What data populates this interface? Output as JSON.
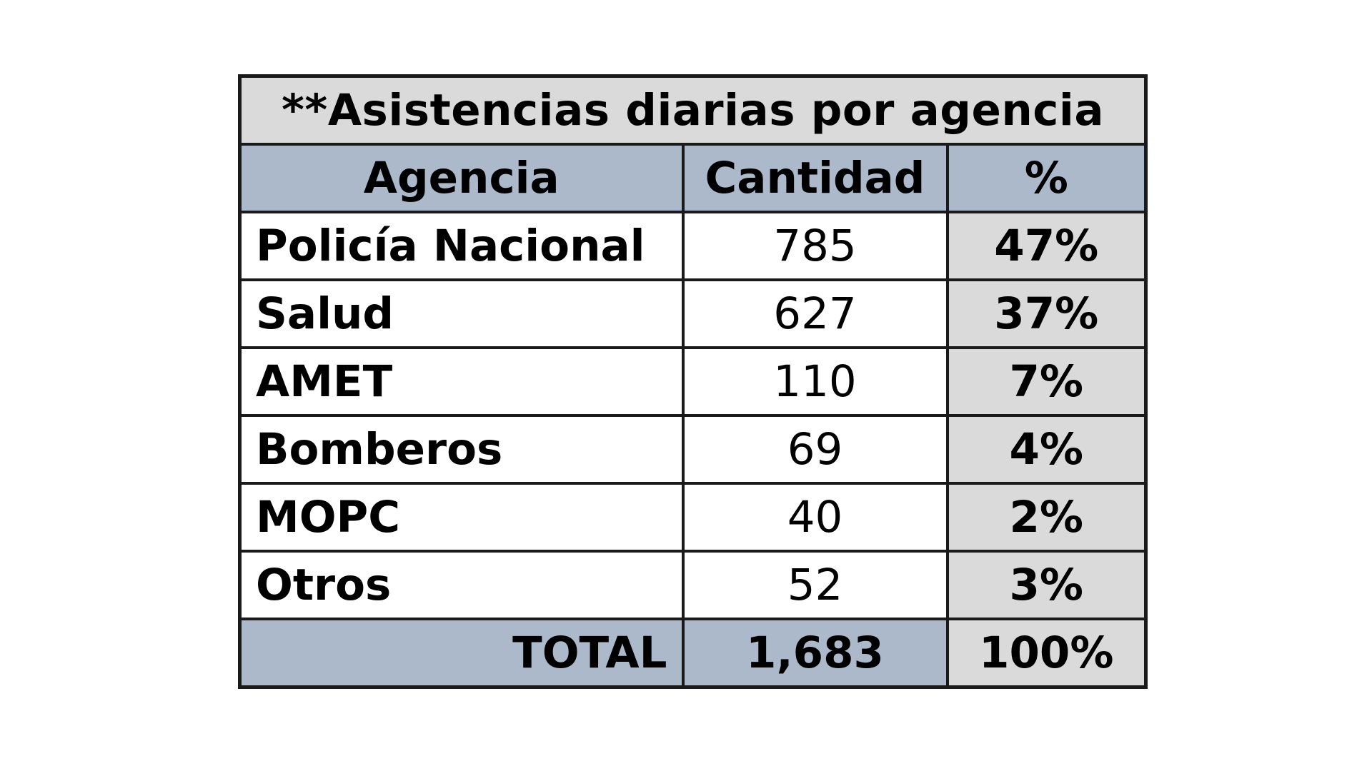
{
  "chart_data": {
    "type": "table",
    "title": "**Asistencias diarias por agencia",
    "columns": [
      "Agencia",
      "Cantidad",
      "%"
    ],
    "rows": [
      {
        "agencia": "Policía Nacional",
        "cantidad": "785",
        "porcentaje": "47%"
      },
      {
        "agencia": "Salud",
        "cantidad": "627",
        "porcentaje": "37%"
      },
      {
        "agencia": "AMET",
        "cantidad": "110",
        "porcentaje": "7%"
      },
      {
        "agencia": "Bomberos",
        "cantidad": "69",
        "porcentaje": "4%"
      },
      {
        "agencia": "MOPC",
        "cantidad": "40",
        "porcentaje": "2%"
      },
      {
        "agencia": "Otros",
        "cantidad": "52",
        "porcentaje": "3%"
      }
    ],
    "total": {
      "label": "TOTAL",
      "cantidad": "1,683",
      "porcentaje": "100%"
    },
    "colors": {
      "header_fill": "#acb9ca",
      "title_fill": "#dadada",
      "percent_fill": "#dadada",
      "body_fill": "#ffffff",
      "border": "#1a1a1a"
    }
  }
}
